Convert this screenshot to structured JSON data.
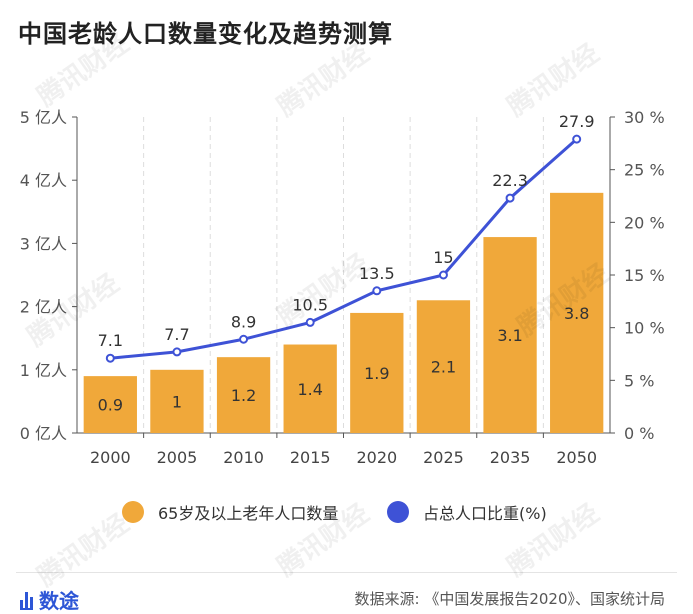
{
  "title": "中国老龄人口数量变化及趋势测算",
  "watermark": "腾讯财经",
  "legend": {
    "bar_label": "65岁及以上老年人口数量",
    "line_label": "占总人口比重(%)"
  },
  "footer": {
    "brand": "数途",
    "source": "数据来源: 《中国发展报告2020》、国家统计局"
  },
  "colors": {
    "bar": "#f0a83a",
    "line": "#3e52d6",
    "brand": "#2d56d6"
  },
  "chart_data": {
    "type": "bar",
    "categories": [
      "2000",
      "2005",
      "2010",
      "2015",
      "2020",
      "2025",
      "2035",
      "2050"
    ],
    "series": [
      {
        "name": "65岁及以上老年人口数量",
        "type": "bar",
        "axis": "left",
        "values": [
          0.9,
          1,
          1.2,
          1.4,
          1.9,
          2.1,
          3.1,
          3.8
        ],
        "labels": [
          "0.9",
          "1",
          "1.2",
          "1.4",
          "1.9",
          "2.1",
          "3.1",
          "3.8"
        ]
      },
      {
        "name": "占总人口比重(%)",
        "type": "line",
        "axis": "right",
        "values": [
          7.1,
          7.7,
          8.9,
          10.5,
          13.5,
          15,
          22.3,
          27.9
        ],
        "labels": [
          "7.1",
          "7.7",
          "8.9",
          "10.5",
          "13.5",
          "15",
          "22.3",
          "27.9"
        ]
      }
    ],
    "y_left": {
      "min": 0,
      "max": 5,
      "ticks": [
        "0 亿人",
        "1 亿人",
        "2 亿人",
        "3 亿人",
        "4 亿人",
        "5 亿人"
      ]
    },
    "y_right": {
      "min": 0,
      "max": 30,
      "ticks": [
        "0 %",
        "5 %",
        "10 %",
        "15 %",
        "20 %",
        "25 %",
        "30 %"
      ]
    },
    "grid": "vertical-dashed"
  }
}
